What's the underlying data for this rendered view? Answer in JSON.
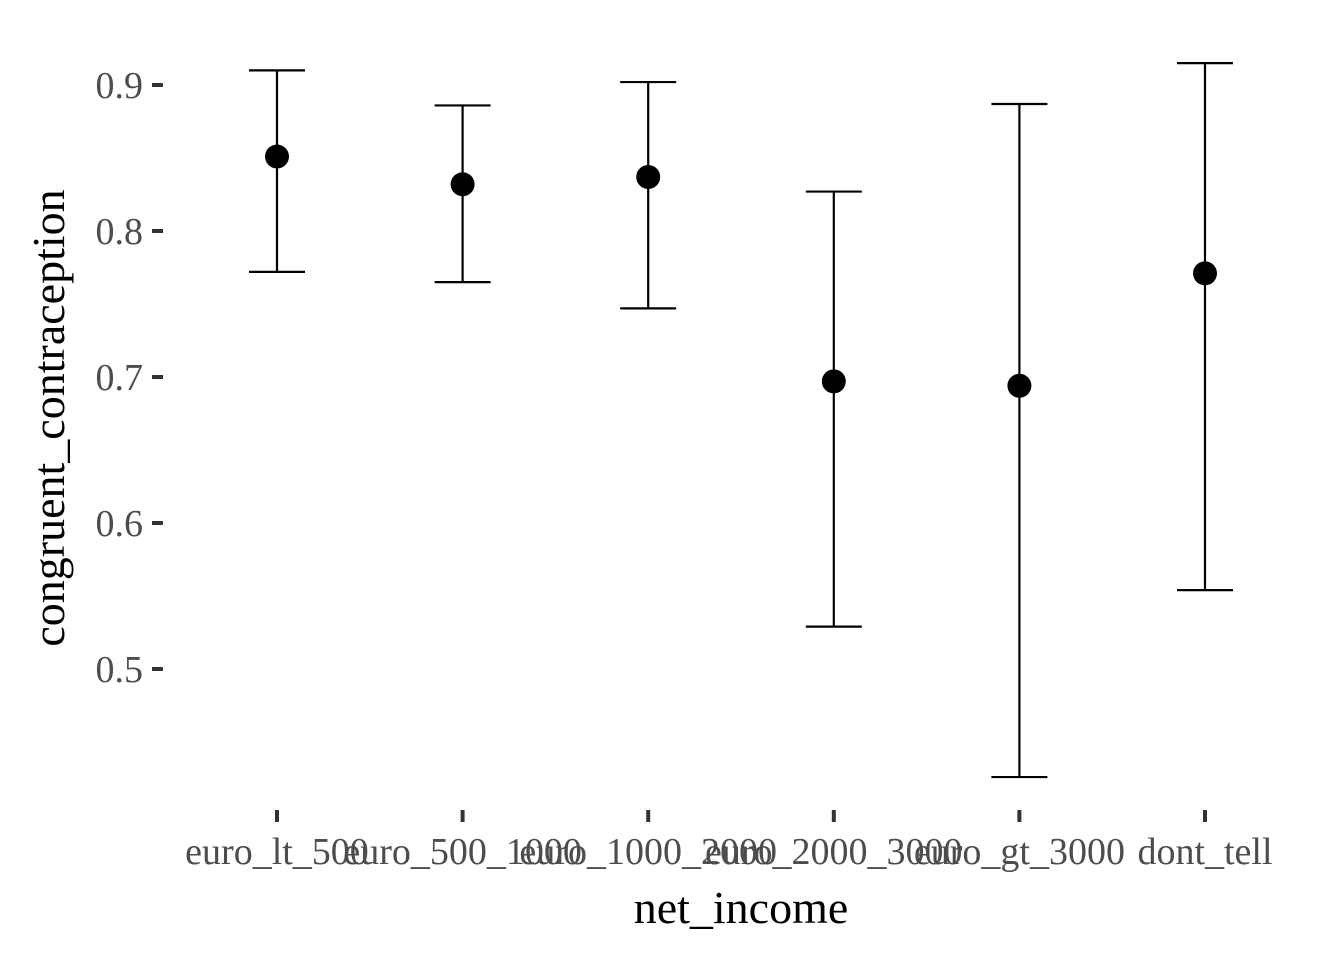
{
  "chart_data": {
    "type": "scatter",
    "title": "",
    "xlabel": "net_income",
    "ylabel": "congruent_contraception",
    "categories": [
      "euro_lt_500",
      "euro_500_1000",
      "euro_1000_2000",
      "euro_2000_3000",
      "euro_gt_3000",
      "dont_tell"
    ],
    "points": [
      {
        "category": "euro_lt_500",
        "y": 0.851,
        "ymin": 0.772,
        "ymax": 0.91
      },
      {
        "category": "euro_500_1000",
        "y": 0.832,
        "ymin": 0.765,
        "ymax": 0.886
      },
      {
        "category": "euro_1000_2000",
        "y": 0.837,
        "ymin": 0.747,
        "ymax": 0.902
      },
      {
        "category": "euro_2000_3000",
        "y": 0.697,
        "ymin": 0.529,
        "ymax": 0.827
      },
      {
        "category": "euro_gt_3000",
        "y": 0.694,
        "ymin": 0.426,
        "ymax": 0.887
      },
      {
        "category": "dont_tell",
        "y": 0.771,
        "ymin": 0.554,
        "ymax": 0.915
      }
    ],
    "yticks": [
      0.5,
      0.6,
      0.7,
      0.8,
      0.9
    ],
    "ytick_labels": [
      "0.5",
      "0.6",
      "0.7",
      "0.8",
      "0.9"
    ],
    "ylim": [
      0.4,
      0.95
    ],
    "grid": false,
    "legend": "none",
    "colors": {
      "points": "#000000",
      "errorbars": "#000000",
      "tick_labels": "#4d4d4d"
    }
  }
}
